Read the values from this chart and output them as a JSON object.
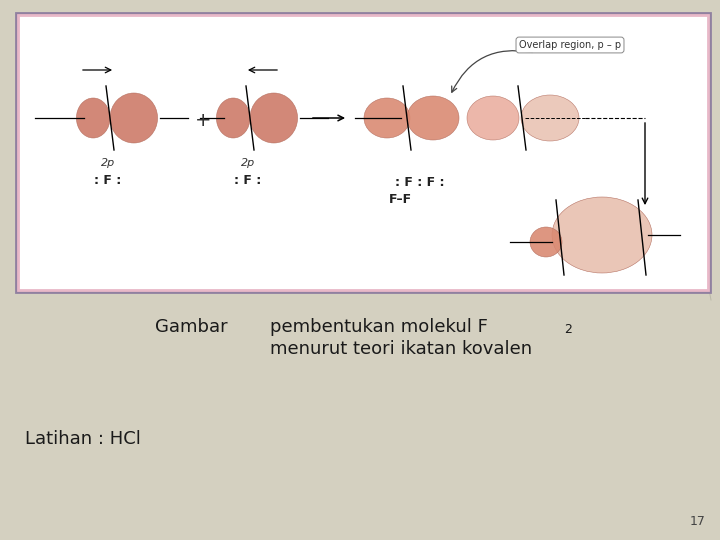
{
  "bg_color": "#d4d0c0",
  "box_bg": "#ffffff",
  "box_border_outer": "#9080a0",
  "box_border_inner": "#e8b8c8",
  "salmon": "#cc7865",
  "salmon_mid": "#d98870",
  "salmon_light": "#e8a898",
  "salmon_pale": "#e8c0b0",
  "title": "",
  "gambar_label": "Gambar",
  "gambar_text_line1": "pembentukan molekul F",
  "gambar_text_subscript": "2",
  "gambar_text_line2": "menurut teori ikatan kovalen",
  "latihan_label": "Latihan : HCl",
  "page_num": "17",
  "overlap_label": "Overlap region, p – p",
  "label_2p_1": "2p",
  "label_2p_2": "2p",
  "label_F1": ": F :",
  "label_F2": ": F :",
  "label_FF1": ": F : F :",
  "label_FF2": "F–F"
}
